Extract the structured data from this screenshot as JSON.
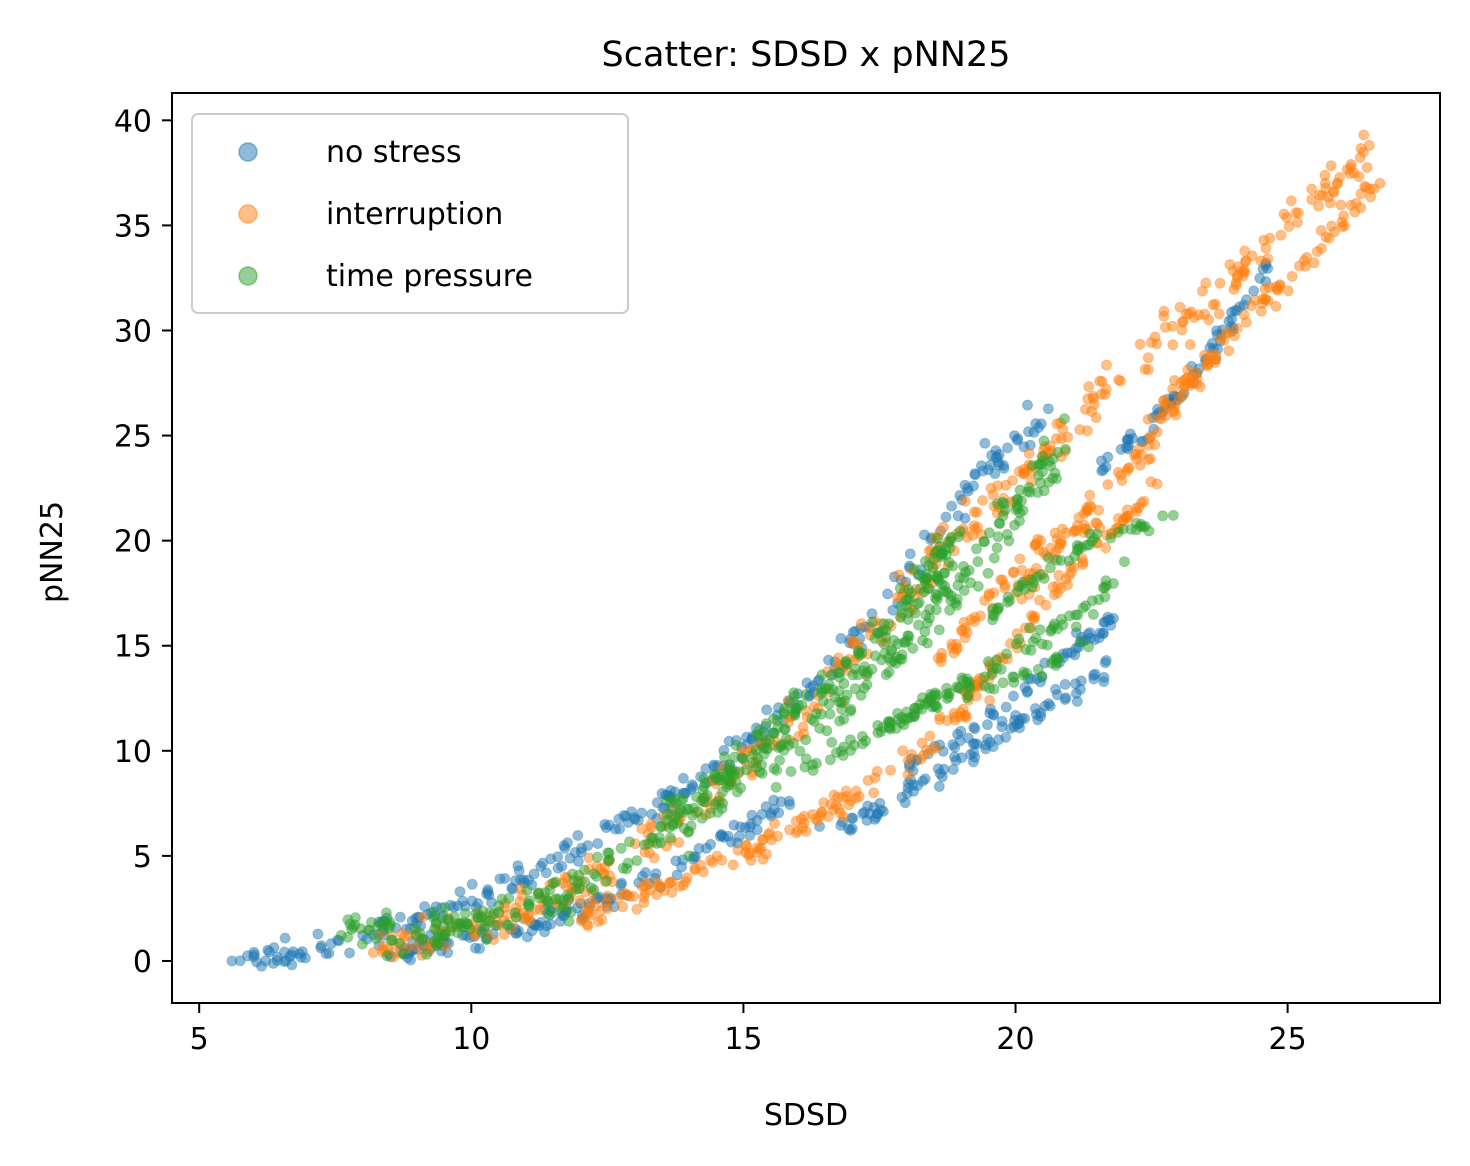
{
  "chart_data": {
    "type": "scatter",
    "title": "Scatter: SDSD x pNN25",
    "xlabel": "SDSD",
    "ylabel": "pNN25",
    "xlim": [
      4.5,
      27.8
    ],
    "ylim": [
      -2,
      41.3
    ],
    "xticks": [
      5,
      10,
      15,
      20,
      25
    ],
    "yticks": [
      0,
      5,
      10,
      15,
      20,
      25,
      30,
      35,
      40
    ],
    "grid": false,
    "legend_position": "upper-left",
    "marker_alpha": 0.5,
    "series": [
      {
        "name": "no stress",
        "color": "#1f77b4",
        "bands": [
          {
            "points": [
              [
                5.6,
                0.0
              ],
              [
                7.0,
                0.5
              ],
              [
                8.5,
                1.5
              ],
              [
                10.0,
                2.8
              ],
              [
                11.5,
                4.8
              ],
              [
                13.0,
                6.8
              ],
              [
                14.5,
                9.0
              ],
              [
                16.0,
                12.5
              ],
              [
                17.5,
                16.5
              ],
              [
                19.0,
                22.0
              ],
              [
                20.5,
                26.2
              ]
            ],
            "width": 0.6,
            "n": 260
          },
          {
            "points": [
              [
                8.5,
                0.5
              ],
              [
                10.0,
                1.0
              ],
              [
                11.5,
                2.0
              ],
              [
                13.0,
                3.5
              ],
              [
                14.5,
                5.5
              ],
              [
                16.0,
                8.0
              ]
            ],
            "width": 0.5,
            "n": 140
          },
          {
            "points": [
              [
                16.8,
                6.4
              ],
              [
                17.5,
                7.2
              ],
              [
                18.5,
                8.8
              ],
              [
                19.5,
                10.5
              ],
              [
                20.5,
                12.0
              ],
              [
                21.8,
                14.0
              ]
            ],
            "width": 0.5,
            "n": 90
          },
          {
            "points": [
              [
                18.0,
                9.2
              ],
              [
                19.0,
                10.8
              ],
              [
                20.0,
                12.5
              ],
              [
                21.0,
                14.8
              ],
              [
                21.8,
                16.2
              ]
            ],
            "width": 0.4,
            "n": 60
          },
          {
            "points": [
              [
                21.5,
                23.5
              ],
              [
                22.5,
                25.5
              ],
              [
                23.5,
                28.5
              ],
              [
                24.6,
                33.0
              ]
            ],
            "width": 0.4,
            "n": 70
          }
        ],
        "points": [
          [
            5.6,
            0.0
          ],
          [
            6.0,
            0.2
          ],
          [
            6.7,
            0.3
          ],
          [
            16.4,
            6.4
          ],
          [
            17.0,
            6.3
          ],
          [
            18.6,
            8.3
          ],
          [
            21.8,
            16.3
          ],
          [
            24.6,
            33.2
          ]
        ]
      },
      {
        "name": "interruption",
        "color": "#ff7f0e",
        "bands": [
          {
            "points": [
              [
                8.2,
                0.5
              ],
              [
                10.0,
                1.5
              ],
              [
                11.5,
                3.0
              ],
              [
                13.0,
                5.0
              ],
              [
                14.5,
                8.0
              ],
              [
                16.0,
                11.5
              ],
              [
                17.5,
                16.0
              ],
              [
                19.0,
                20.5
              ],
              [
                20.5,
                24.0
              ],
              [
                22.0,
                28.0
              ],
              [
                23.5,
                31.5
              ],
              [
                25.0,
                35.0
              ],
              [
                26.5,
                38.5
              ]
            ],
            "width": 0.9,
            "n": 380
          },
          {
            "points": [
              [
                12.0,
                2.0
              ],
              [
                13.5,
                3.5
              ],
              [
                15.0,
                5.0
              ],
              [
                16.5,
                7.0
              ],
              [
                18.0,
                9.5
              ],
              [
                19.5,
                13.0
              ]
            ],
            "width": 0.6,
            "n": 140
          },
          {
            "points": [
              [
                19.0,
                12.5
              ],
              [
                20.0,
                15.0
              ],
              [
                21.0,
                18.5
              ],
              [
                22.5,
                22.5
              ]
            ],
            "width": 0.4,
            "n": 70
          },
          {
            "points": [
              [
                20.0,
                17.0
              ],
              [
                21.0,
                20.5
              ],
              [
                22.3,
                24.0
              ],
              [
                23.0,
                27.0
              ],
              [
                24.0,
                30.0
              ],
              [
                25.5,
                33.5
              ],
              [
                26.6,
                37.0
              ]
            ],
            "width": 0.5,
            "n": 150
          },
          {
            "points": [
              [
                18.5,
                14.0
              ],
              [
                19.5,
                17.0
              ],
              [
                20.5,
                20.0
              ],
              [
                21.6,
                21.0
              ]
            ],
            "width": 0.35,
            "n": 50
          }
        ],
        "points": [
          [
            26.4,
            39.3
          ],
          [
            26.7,
            37.0
          ],
          [
            26.5,
            38.8
          ],
          [
            8.2,
            0.4
          ],
          [
            22.6,
            22.7
          ],
          [
            21.5,
            20.8
          ]
        ]
      },
      {
        "name": "time pressure",
        "color": "#2ca02c",
        "bands": [
          {
            "points": [
              [
                7.8,
                1.5
              ],
              [
                9.0,
                1.2
              ],
              [
                10.5,
                2.2
              ],
              [
                12.0,
                3.5
              ],
              [
                13.5,
                6.0
              ],
              [
                15.0,
                8.5
              ],
              [
                16.5,
                11.5
              ],
              [
                18.0,
                15.0
              ],
              [
                19.5,
                19.5
              ],
              [
                20.8,
                24.5
              ]
            ],
            "width": 0.9,
            "n": 340
          },
          {
            "points": [
              [
                13.5,
                6.5
              ],
              [
                15.0,
                9.5
              ],
              [
                16.5,
                13.0
              ],
              [
                18.0,
                17.0
              ],
              [
                19.0,
                20.5
              ]
            ],
            "width": 0.8,
            "n": 160
          },
          {
            "points": [
              [
                16.0,
                9.0
              ],
              [
                17.5,
                11.0
              ],
              [
                19.0,
                13.0
              ],
              [
                20.5,
                15.5
              ],
              [
                22.0,
                18.0
              ]
            ],
            "width": 0.5,
            "n": 90
          },
          {
            "points": [
              [
                19.5,
                16.5
              ],
              [
                20.5,
                18.5
              ],
              [
                21.5,
                20.2
              ],
              [
                22.9,
                21.2
              ]
            ],
            "width": 0.35,
            "n": 50
          },
          {
            "points": [
              [
                17.5,
                11.0
              ],
              [
                18.5,
                12.5
              ],
              [
                19.5,
                13.0
              ],
              [
                20.5,
                14.0
              ],
              [
                21.3,
                15.0
              ]
            ],
            "width": 0.35,
            "n": 50
          }
        ],
        "points": [
          [
            20.9,
            25.8
          ],
          [
            22.9,
            21.2
          ],
          [
            7.8,
            1.5
          ],
          [
            14.0,
            5.0
          ],
          [
            22.0,
            19.0
          ]
        ]
      }
    ]
  }
}
